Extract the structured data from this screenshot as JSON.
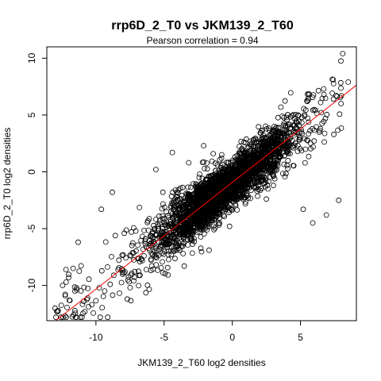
{
  "chart_data": {
    "type": "scatter",
    "title": "rrp6D_2_T0 vs JKM139_2_T60",
    "subtitle": "Pearson correlation =  0.94",
    "xlabel": "JKM139_2_T60 log2 densities",
    "ylabel": "rrp6D_2_T0 log2 densities",
    "xlim": [
      -13.6,
      9.1
    ],
    "ylim": [
      -13.1,
      11.0
    ],
    "xticks": [
      -10,
      -5,
      0,
      5
    ],
    "yticks": [
      -10,
      -5,
      0,
      5,
      10
    ],
    "grid": false,
    "fit_line": {
      "intercept": -0.93,
      "slope": 0.94,
      "color": "#ff0000"
    },
    "point_color": "#000000",
    "sample_points": [
      [
        8.1,
        10.4
      ],
      [
        8.5,
        7.9
      ],
      [
        7.4,
        8.1
      ],
      [
        6.7,
        7.3
      ],
      [
        8.0,
        6.7
      ],
      [
        5.5,
        6.2
      ],
      [
        5.1,
        4.8
      ],
      [
        7.8,
        -2.5
      ],
      [
        6.9,
        -3.8
      ],
      [
        5.9,
        -4.5
      ],
      [
        5.2,
        -3.3
      ],
      [
        2.5,
        -2.4
      ],
      [
        -12.8,
        -12.3
      ],
      [
        -13.0,
        -12.0
      ],
      [
        -10.6,
        -11.1
      ],
      [
        -10.9,
        -11.4
      ],
      [
        -7.7,
        -11.2
      ],
      [
        -12.2,
        -8.6
      ],
      [
        -12.0,
        -9.3
      ],
      [
        -11.3,
        -6.2
      ],
      [
        -9.6,
        -3.3
      ],
      [
        -8.8,
        -1.8
      ],
      [
        -5.6,
        0.2
      ],
      [
        -4.4,
        1.7
      ],
      [
        -3.2,
        0.8
      ],
      [
        -2.1,
        2.3
      ],
      [
        -1.7,
        -6.9
      ],
      [
        -0.2,
        -4.8
      ],
      [
        -6.3,
        -8.6
      ],
      [
        -1.4,
        1.6
      ]
    ]
  }
}
